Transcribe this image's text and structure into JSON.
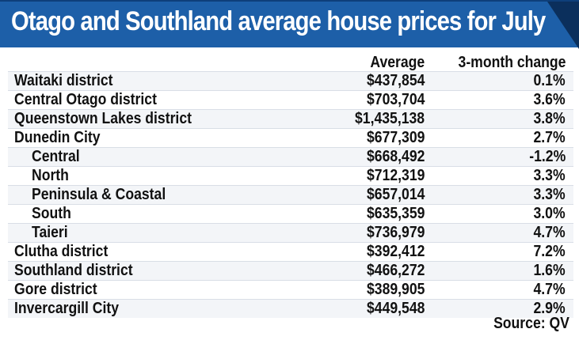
{
  "chart_data": {
    "type": "table",
    "title": "Otago and Southland average house prices for July",
    "columns": [
      "Average",
      "3-month change"
    ],
    "rows": [
      {
        "name": "Waitaki district",
        "average": "$437,854",
        "change": "0.1%",
        "sub": false
      },
      {
        "name": "Central Otago district",
        "average": "$703,704",
        "change": "3.6%",
        "sub": false
      },
      {
        "name": "Queenstown Lakes district",
        "average": "$1,435,138",
        "change": "3.8%",
        "sub": false
      },
      {
        "name": "Dunedin City",
        "average": "$677,309",
        "change": "2.7%",
        "sub": false
      },
      {
        "name": "Central",
        "average": "$668,492",
        "change": "-1.2%",
        "sub": true
      },
      {
        "name": "North",
        "average": "$712,319",
        "change": "3.3%",
        "sub": true
      },
      {
        "name": "Peninsula & Coastal",
        "average": "$657,014",
        "change": "3.3%",
        "sub": true
      },
      {
        "name": "South",
        "average": "$635,359",
        "change": "3.0%",
        "sub": true
      },
      {
        "name": "Taieri",
        "average": "$736,979",
        "change": "4.7%",
        "sub": true
      },
      {
        "name": "Clutha district",
        "average": "$392,412",
        "change": "7.2%",
        "sub": false
      },
      {
        "name": "Southland district",
        "average": "$466,272",
        "change": "1.6%",
        "sub": false
      },
      {
        "name": "Gore district",
        "average": "$389,905",
        "change": "4.7%",
        "sub": false
      },
      {
        "name": "Invercargill City",
        "average": "$449,548",
        "change": "2.9%",
        "sub": false
      }
    ],
    "source": "Source: QV"
  },
  "colors": {
    "header_bg": "#1d5fa8",
    "header_text": "#ffffff"
  }
}
